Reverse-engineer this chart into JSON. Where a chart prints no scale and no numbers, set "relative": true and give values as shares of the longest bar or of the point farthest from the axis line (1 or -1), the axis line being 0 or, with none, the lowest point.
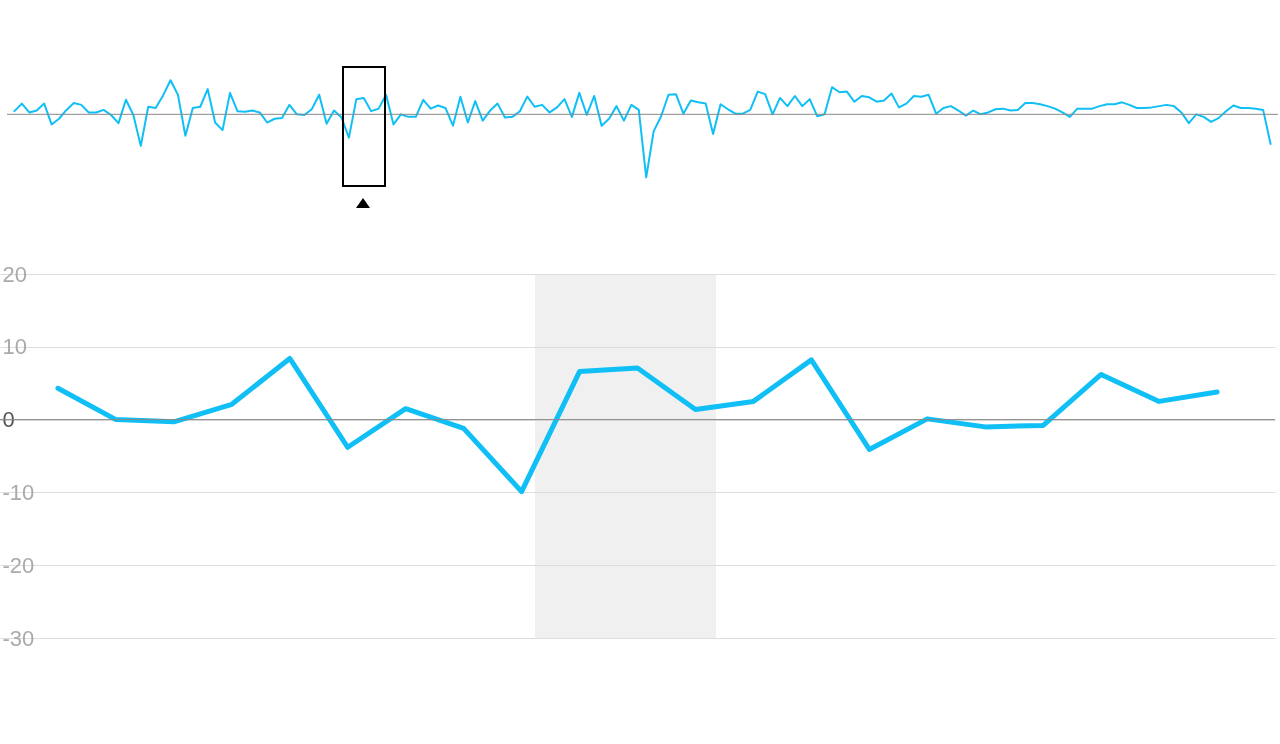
{
  "chart_data": [
    {
      "type": "line",
      "color": "#0fbff5",
      "relative": true,
      "categories": [
        null,
        null,
        null,
        null,
        null,
        null,
        null,
        null,
        null,
        null,
        null,
        null,
        null,
        null,
        null,
        null,
        null,
        null,
        null,
        null,
        null,
        null,
        null,
        null,
        null,
        null,
        null,
        null,
        null,
        null,
        null,
        null,
        null,
        null,
        null,
        null,
        null,
        null,
        null,
        null,
        null,
        null,
        null,
        null,
        null,
        null,
        null,
        null,
        null,
        null,
        null,
        null,
        null,
        null,
        null,
        null,
        null,
        null,
        null,
        null,
        null,
        null,
        null,
        null,
        null,
        null,
        null,
        null,
        null,
        null,
        null,
        null,
        null,
        null,
        null,
        null,
        null,
        null,
        null,
        null,
        null,
        null,
        null,
        null,
        null,
        null,
        null,
        null,
        null,
        null,
        null,
        null,
        null,
        null,
        null,
        null,
        null,
        null,
        null,
        null,
        null,
        null,
        null,
        null,
        null,
        null,
        null,
        null,
        null,
        null,
        null,
        null,
        null,
        null,
        null,
        null,
        null,
        null,
        null,
        null,
        null,
        null,
        null,
        null,
        null,
        null,
        null,
        null,
        null,
        null,
        null,
        null,
        null,
        null,
        null,
        null,
        null,
        null,
        null,
        null,
        null,
        null,
        null,
        null,
        null,
        null,
        null,
        null,
        null,
        null,
        null,
        null,
        null,
        null,
        null,
        null,
        null,
        null,
        null,
        null,
        null,
        null,
        null,
        null,
        null,
        null,
        null,
        null,
        null,
        null
      ],
      "values": [
        0.05,
        0.17,
        0.03,
        0.06,
        0.17,
        -0.16,
        -0.07,
        0.07,
        0.18,
        0.15,
        0.03,
        0.03,
        0.07,
        -0.01,
        -0.14,
        0.23,
        -0.01,
        -0.5,
        0.12,
        0.1,
        0.3,
        0.54,
        0.31,
        -0.34,
        0.1,
        0.12,
        0.4,
        -0.13,
        -0.25,
        0.34,
        0.05,
        0.04,
        0.06,
        0.03,
        -0.13,
        -0.07,
        -0.06,
        0.15,
        0,
        -0.01,
        0.08,
        0.31,
        -0.15,
        0.06,
        -0.05,
        -0.37,
        0.24,
        0.26,
        0.05,
        0.09,
        0.31,
        -0.16,
        0,
        -0.04,
        -0.04,
        0.23,
        0.09,
        0.14,
        0.1,
        -0.18,
        0.28,
        -0.13,
        0.21,
        -0.1,
        0.06,
        0.17,
        -0.05,
        -0.04,
        0.05,
        0.28,
        0.12,
        0.15,
        0.03,
        0.11,
        0.24,
        -0.04,
        0.34,
        -0.01,
        0.29,
        -0.18,
        -0.07,
        0.13,
        -0.1,
        0.15,
        0.07,
        -1,
        -0.27,
        -0.03,
        0.31,
        0.32,
        0.01,
        0.22,
        0.19,
        0.17,
        -0.31,
        0.16,
        0.08,
        0.01,
        0.01,
        0.07,
        0.36,
        0.32,
        0,
        0.26,
        0.13,
        0.29,
        0.13,
        0.24,
        -0.03,
        0,
        0.43,
        0.35,
        0.36,
        0.2,
        0.29,
        0.27,
        0.2,
        0.22,
        0.33,
        0.11,
        0.17,
        0.29,
        0.28,
        0.31,
        0.01,
        0.1,
        0.13,
        0.06,
        -0.02,
        0.06,
        0,
        0.03,
        0.08,
        0.09,
        0.06,
        0.07,
        0.18,
        0.18,
        0.16,
        0.13,
        0.09,
        0.03,
        -0.04,
        0.09,
        0.09,
        0.09,
        0.13,
        0.16,
        0.16,
        0.19,
        0.15,
        0.1,
        0.1,
        0.11,
        0.13,
        0.15,
        0.13,
        0.03,
        -0.14,
        0,
        -0.04,
        -0.12,
        -0.06,
        0.05,
        0.14,
        0.1,
        0.1,
        0.09,
        0.07,
        -0.47
      ]
    },
    {
      "type": "line",
      "color": "#0fbff5",
      "categories": [
        null,
        null,
        null,
        null,
        null,
        null,
        null,
        null,
        null,
        null,
        null,
        null,
        null,
        null,
        null,
        null,
        null,
        null,
        null,
        null,
        null
      ],
      "values": [
        4.3,
        0,
        -0.3,
        2.1,
        8.4,
        -3.8,
        1.5,
        -1.2,
        -9.9,
        6.6,
        7.1,
        1.4,
        2.5,
        8.2,
        -4.1,
        0.1,
        -1.0,
        -0.8,
        6.2,
        2.5,
        3.8
      ],
      "ylim": [
        -30,
        20
      ],
      "yticks": [
        -30,
        -20,
        -10,
        0,
        10,
        20
      ],
      "grid": "y",
      "ref_lines": [
        {
          "axis": "y",
          "value": 0,
          "color": "#888888"
        }
      ]
    }
  ]
}
